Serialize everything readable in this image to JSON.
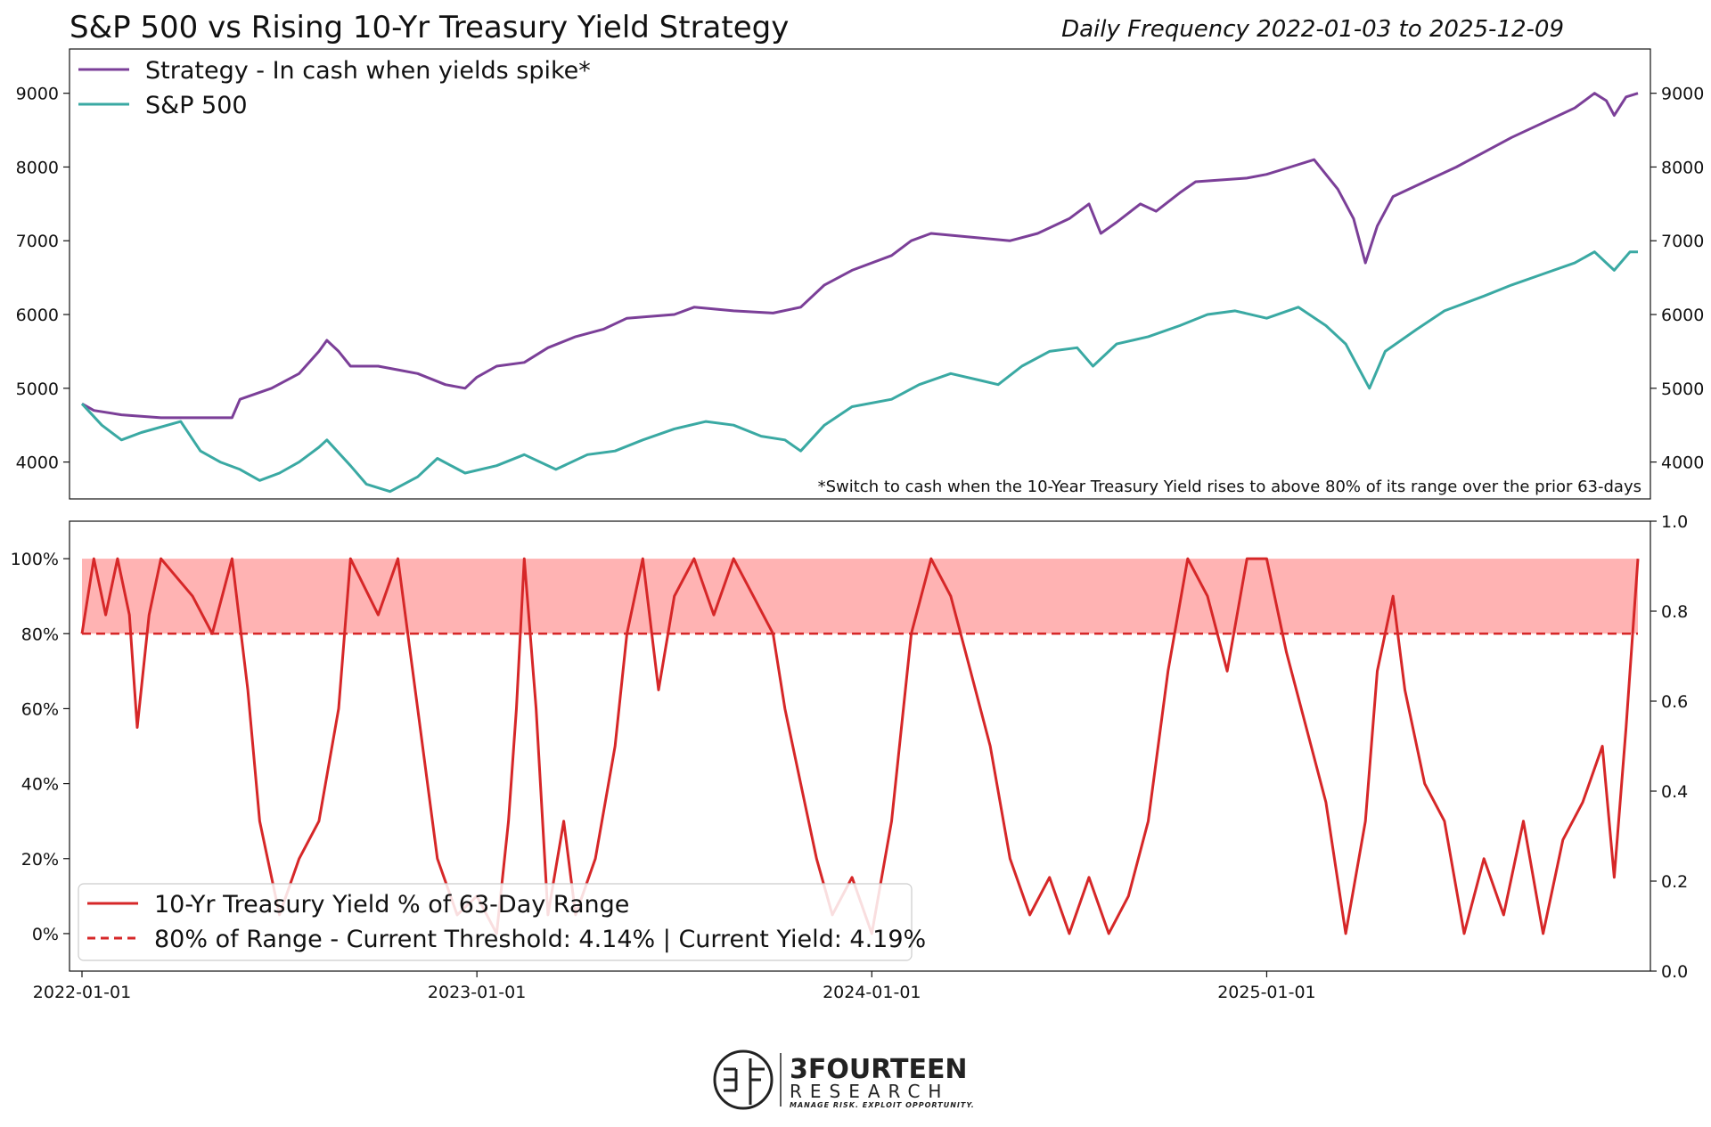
{
  "title": "S&P 500 vs Rising 10-Yr Treasury Yield Strategy",
  "subtitle": "Daily Frequency 2022-01-03 to 2025-12-09",
  "footnote": "*Switch to cash when the 10-Year Treasury Yield rises to above 80% of its range over the prior 63-days",
  "colors": {
    "strategy": "#7b3f98",
    "sp500": "#3aa9a3",
    "yield": "#d62728",
    "band": "#ffb3b3"
  },
  "x_ticks": [
    "2022-01-01",
    "2023-01-01",
    "2024-01-01",
    "2025-01-01"
  ],
  "chart_data": [
    {
      "type": "line",
      "title": "S&P 500 vs Rising 10-Yr Treasury Yield Strategy",
      "ylim": [
        3500,
        9600
      ],
      "y_ticks": [
        4000,
        5000,
        6000,
        7000,
        8000,
        9000
      ],
      "legend": "top-left",
      "series": [
        {
          "name": "Strategy - In cash when yields spike*",
          "points": [
            [
              2022.0,
              4790
            ],
            [
              2022.03,
              4700
            ],
            [
              2022.1,
              4640
            ],
            [
              2022.2,
              4600
            ],
            [
              2022.38,
              4600
            ],
            [
              2022.4,
              4850
            ],
            [
              2022.48,
              5000
            ],
            [
              2022.55,
              5200
            ],
            [
              2022.6,
              5500
            ],
            [
              2022.62,
              5650
            ],
            [
              2022.65,
              5500
            ],
            [
              2022.68,
              5300
            ],
            [
              2022.75,
              5300
            ],
            [
              2022.8,
              5250
            ],
            [
              2022.85,
              5200
            ],
            [
              2022.92,
              5050
            ],
            [
              2022.97,
              5000
            ],
            [
              2023.0,
              5150
            ],
            [
              2023.05,
              5300
            ],
            [
              2023.12,
              5350
            ],
            [
              2023.18,
              5550
            ],
            [
              2023.25,
              5700
            ],
            [
              2023.32,
              5800
            ],
            [
              2023.38,
              5950
            ],
            [
              2023.5,
              6000
            ],
            [
              2023.55,
              6100
            ],
            [
              2023.65,
              6050
            ],
            [
              2023.75,
              6020
            ],
            [
              2023.82,
              6100
            ],
            [
              2023.88,
              6400
            ],
            [
              2023.95,
              6600
            ],
            [
              2024.05,
              6800
            ],
            [
              2024.1,
              7000
            ],
            [
              2024.15,
              7100
            ],
            [
              2024.25,
              7050
            ],
            [
              2024.35,
              7000
            ],
            [
              2024.42,
              7100
            ],
            [
              2024.5,
              7300
            ],
            [
              2024.55,
              7500
            ],
            [
              2024.58,
              7100
            ],
            [
              2024.62,
              7250
            ],
            [
              2024.68,
              7500
            ],
            [
              2024.72,
              7400
            ],
            [
              2024.78,
              7650
            ],
            [
              2024.82,
              7800
            ],
            [
              2024.95,
              7850
            ],
            [
              2025.0,
              7900
            ],
            [
              2025.06,
              8000
            ],
            [
              2025.12,
              8100
            ],
            [
              2025.18,
              7700
            ],
            [
              2025.22,
              7300
            ],
            [
              2025.25,
              6700
            ],
            [
              2025.28,
              7200
            ],
            [
              2025.32,
              7600
            ],
            [
              2025.4,
              7800
            ],
            [
              2025.48,
              8000
            ],
            [
              2025.55,
              8200
            ],
            [
              2025.62,
              8400
            ],
            [
              2025.7,
              8600
            ],
            [
              2025.78,
              8800
            ],
            [
              2025.83,
              9000
            ],
            [
              2025.86,
              8900
            ],
            [
              2025.88,
              8700
            ],
            [
              2025.91,
              8950
            ],
            [
              2025.94,
              9000
            ]
          ]
        },
        {
          "name": "S&P 500",
          "points": [
            [
              2022.0,
              4790
            ],
            [
              2022.05,
              4500
            ],
            [
              2022.1,
              4300
            ],
            [
              2022.15,
              4400
            ],
            [
              2022.25,
              4550
            ],
            [
              2022.3,
              4150
            ],
            [
              2022.35,
              4000
            ],
            [
              2022.4,
              3900
            ],
            [
              2022.45,
              3750
            ],
            [
              2022.5,
              3850
            ],
            [
              2022.55,
              4000
            ],
            [
              2022.6,
              4200
            ],
            [
              2022.62,
              4300
            ],
            [
              2022.68,
              3950
            ],
            [
              2022.72,
              3700
            ],
            [
              2022.78,
              3600
            ],
            [
              2022.85,
              3800
            ],
            [
              2022.9,
              4050
            ],
            [
              2022.97,
              3850
            ],
            [
              2023.05,
              3950
            ],
            [
              2023.12,
              4100
            ],
            [
              2023.2,
              3900
            ],
            [
              2023.28,
              4100
            ],
            [
              2023.35,
              4150
            ],
            [
              2023.42,
              4300
            ],
            [
              2023.5,
              4450
            ],
            [
              2023.58,
              4550
            ],
            [
              2023.65,
              4500
            ],
            [
              2023.72,
              4350
            ],
            [
              2023.78,
              4300
            ],
            [
              2023.82,
              4150
            ],
            [
              2023.88,
              4500
            ],
            [
              2023.95,
              4750
            ],
            [
              2024.05,
              4850
            ],
            [
              2024.12,
              5050
            ],
            [
              2024.2,
              5200
            ],
            [
              2024.28,
              5100
            ],
            [
              2024.32,
              5050
            ],
            [
              2024.38,
              5300
            ],
            [
              2024.45,
              5500
            ],
            [
              2024.52,
              5550
            ],
            [
              2024.56,
              5300
            ],
            [
              2024.62,
              5600
            ],
            [
              2024.7,
              5700
            ],
            [
              2024.78,
              5850
            ],
            [
              2024.85,
              6000
            ],
            [
              2024.92,
              6050
            ],
            [
              2025.0,
              5950
            ],
            [
              2025.08,
              6100
            ],
            [
              2025.15,
              5850
            ],
            [
              2025.2,
              5600
            ],
            [
              2025.26,
              5000
            ],
            [
              2025.3,
              5500
            ],
            [
              2025.38,
              5800
            ],
            [
              2025.45,
              6050
            ],
            [
              2025.55,
              6250
            ],
            [
              2025.62,
              6400
            ],
            [
              2025.7,
              6550
            ],
            [
              2025.78,
              6700
            ],
            [
              2025.83,
              6850
            ],
            [
              2025.86,
              6700
            ],
            [
              2025.88,
              6600
            ],
            [
              2025.92,
              6850
            ],
            [
              2025.94,
              6850
            ]
          ]
        }
      ],
      "annotation": "*Switch to cash when the 10-Year Treasury Yield rises to above 80% of its range over the prior 63-days"
    },
    {
      "type": "line",
      "ylim": [
        -0.1,
        1.1
      ],
      "y_ticks": [
        "0%",
        "20%",
        "40%",
        "60%",
        "80%",
        "100%"
      ],
      "y2_ticks": [
        "0.0",
        "0.2",
        "0.4",
        "0.6",
        "0.8",
        "1.0"
      ],
      "legend": "bottom-left",
      "threshold": 0.8,
      "shaded_band": [
        0.8,
        1.0
      ],
      "series": [
        {
          "name": "10-Yr Treasury Yield % of 63-Day Range",
          "points": [
            [
              2022.0,
              0.8
            ],
            [
              2022.03,
              1.0
            ],
            [
              2022.06,
              0.85
            ],
            [
              2022.09,
              1.0
            ],
            [
              2022.12,
              0.85
            ],
            [
              2022.14,
              0.55
            ],
            [
              2022.17,
              0.85
            ],
            [
              2022.2,
              1.0
            ],
            [
              2022.28,
              0.9
            ],
            [
              2022.33,
              0.8
            ],
            [
              2022.38,
              1.0
            ],
            [
              2022.42,
              0.65
            ],
            [
              2022.45,
              0.3
            ],
            [
              2022.5,
              0.05
            ],
            [
              2022.55,
              0.2
            ],
            [
              2022.6,
              0.3
            ],
            [
              2022.65,
              0.6
            ],
            [
              2022.68,
              1.0
            ],
            [
              2022.75,
              0.85
            ],
            [
              2022.8,
              1.0
            ],
            [
              2022.85,
              0.6
            ],
            [
              2022.9,
              0.2
            ],
            [
              2022.95,
              0.05
            ],
            [
              2023.0,
              0.1
            ],
            [
              2023.05,
              0.0
            ],
            [
              2023.08,
              0.3
            ],
            [
              2023.1,
              0.6
            ],
            [
              2023.12,
              1.0
            ],
            [
              2023.15,
              0.6
            ],
            [
              2023.18,
              0.05
            ],
            [
              2023.22,
              0.3
            ],
            [
              2023.25,
              0.05
            ],
            [
              2023.3,
              0.2
            ],
            [
              2023.35,
              0.5
            ],
            [
              2023.38,
              0.8
            ],
            [
              2023.42,
              1.0
            ],
            [
              2023.46,
              0.65
            ],
            [
              2023.5,
              0.9
            ],
            [
              2023.55,
              1.0
            ],
            [
              2023.6,
              0.85
            ],
            [
              2023.65,
              1.0
            ],
            [
              2023.7,
              0.9
            ],
            [
              2023.75,
              0.8
            ],
            [
              2023.78,
              0.6
            ],
            [
              2023.82,
              0.4
            ],
            [
              2023.86,
              0.2
            ],
            [
              2023.9,
              0.05
            ],
            [
              2023.95,
              0.15
            ],
            [
              2024.0,
              0.0
            ],
            [
              2024.05,
              0.3
            ],
            [
              2024.1,
              0.8
            ],
            [
              2024.15,
              1.0
            ],
            [
              2024.2,
              0.9
            ],
            [
              2024.25,
              0.7
            ],
            [
              2024.3,
              0.5
            ],
            [
              2024.35,
              0.2
            ],
            [
              2024.4,
              0.05
            ],
            [
              2024.45,
              0.15
            ],
            [
              2024.5,
              0.0
            ],
            [
              2024.55,
              0.15
            ],
            [
              2024.6,
              0.0
            ],
            [
              2024.65,
              0.1
            ],
            [
              2024.7,
              0.3
            ],
            [
              2024.75,
              0.7
            ],
            [
              2024.8,
              1.0
            ],
            [
              2024.85,
              0.9
            ],
            [
              2024.9,
              0.7
            ],
            [
              2024.95,
              1.0
            ],
            [
              2025.0,
              1.0
            ],
            [
              2025.05,
              0.75
            ],
            [
              2025.1,
              0.55
            ],
            [
              2025.15,
              0.35
            ],
            [
              2025.2,
              0.0
            ],
            [
              2025.25,
              0.3
            ],
            [
              2025.28,
              0.7
            ],
            [
              2025.32,
              0.9
            ],
            [
              2025.35,
              0.65
            ],
            [
              2025.4,
              0.4
            ],
            [
              2025.45,
              0.3
            ],
            [
              2025.5,
              0.0
            ],
            [
              2025.55,
              0.2
            ],
            [
              2025.6,
              0.05
            ],
            [
              2025.65,
              0.3
            ],
            [
              2025.7,
              0.0
            ],
            [
              2025.75,
              0.25
            ],
            [
              2025.8,
              0.35
            ],
            [
              2025.85,
              0.5
            ],
            [
              2025.88,
              0.15
            ],
            [
              2025.91,
              0.55
            ],
            [
              2025.94,
              1.0
            ]
          ]
        }
      ],
      "legend_entries": [
        "10-Yr Treasury Yield % of 63-Day Range",
        "80% of Range - Current Threshold: 4.14% | Current Yield: 4.19%"
      ]
    }
  ],
  "logo": {
    "name": "3FOURTEEN",
    "sub": "RESEARCH",
    "tagline": "MANAGE RISK. EXPLOIT OPPORTUNITY."
  }
}
